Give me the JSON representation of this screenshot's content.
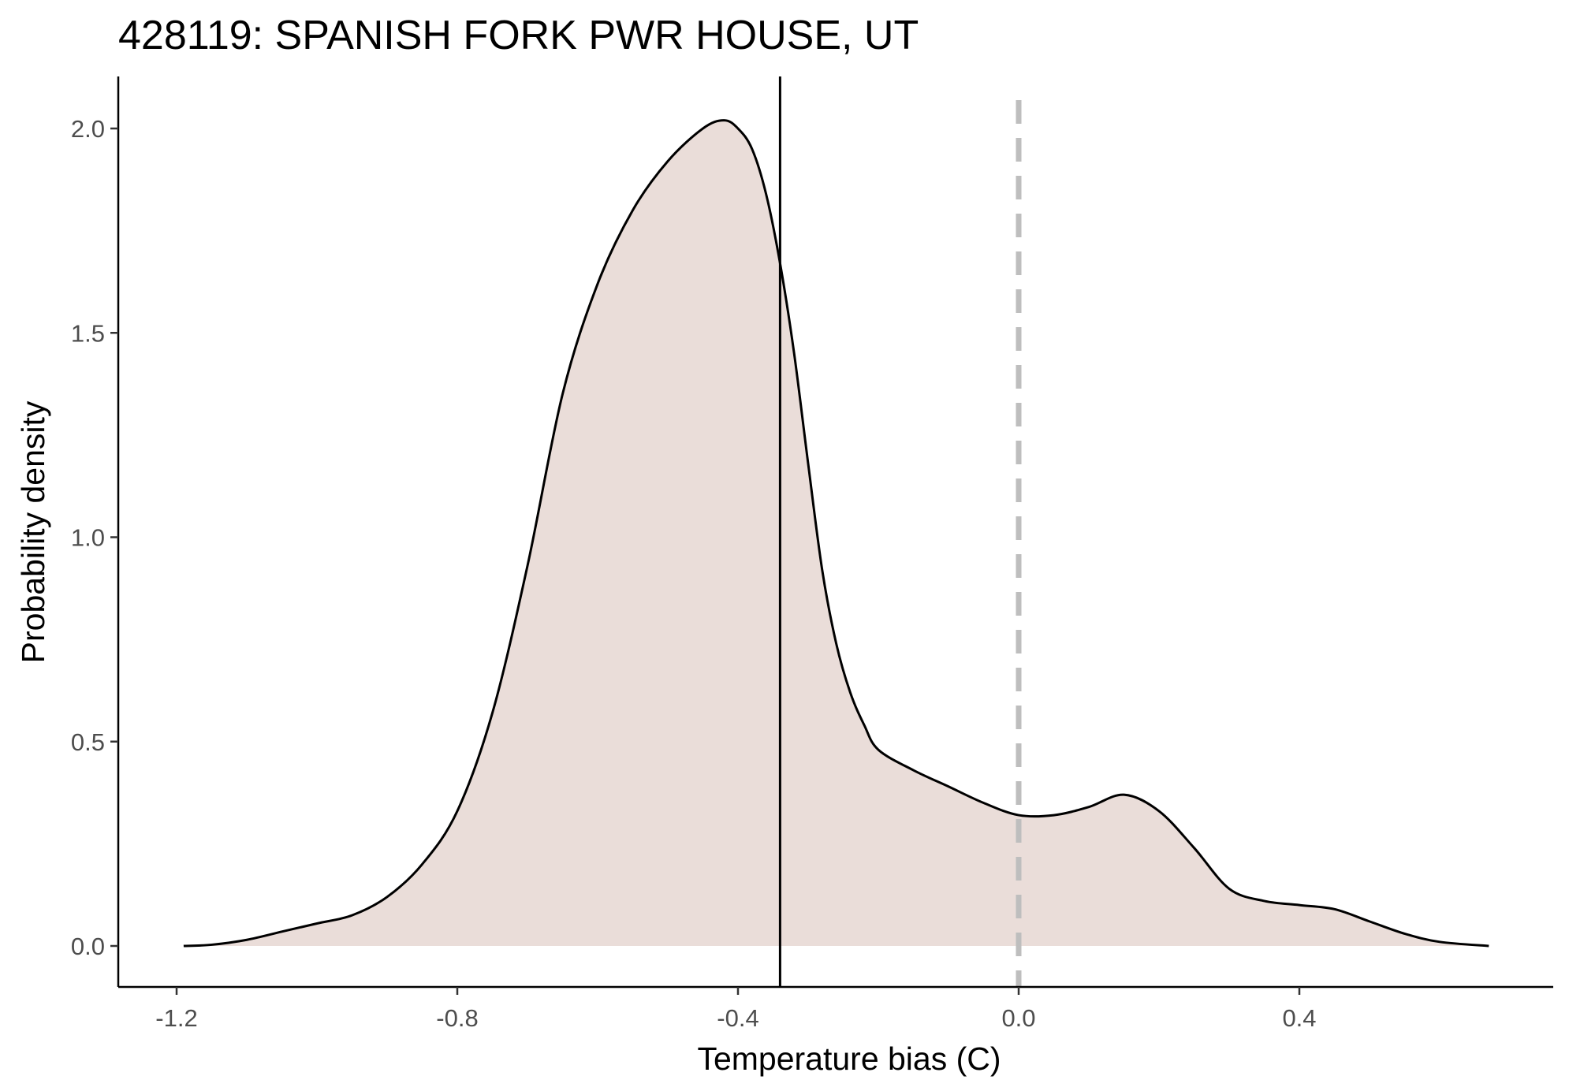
{
  "chart_data": {
    "type": "area",
    "title": "428119: SPANISH FORK PWR HOUSE, UT",
    "xlabel": "Temperature bias (C)",
    "ylabel": "Probability density",
    "xlim": [
      -1.29,
      0.76
    ],
    "ylim": [
      -0.1,
      2.13
    ],
    "x_ticks": [
      -1.2,
      -0.8,
      -0.4,
      0.0,
      0.4
    ],
    "x_tick_labels": [
      "-1.2",
      "-0.8",
      "-0.4",
      "0.0",
      "0.4"
    ],
    "y_ticks": [
      0.0,
      0.5,
      1.0,
      1.5,
      2.0
    ],
    "y_tick_labels": [
      "0.0",
      "0.5",
      "1.0",
      "1.5",
      "2.0"
    ],
    "grid": false,
    "legend": "none",
    "fill_color": "#eaddd9",
    "line_color": "#000000",
    "density": {
      "x": [
        -1.19,
        -1.15,
        -1.1,
        -1.05,
        -1.0,
        -0.95,
        -0.9,
        -0.85,
        -0.8,
        -0.75,
        -0.7,
        -0.65,
        -0.6,
        -0.55,
        -0.5,
        -0.45,
        -0.42,
        -0.4,
        -0.38,
        -0.36,
        -0.34,
        -0.32,
        -0.3,
        -0.28,
        -0.26,
        -0.24,
        -0.22,
        -0.2,
        -0.15,
        -0.1,
        -0.05,
        0.0,
        0.05,
        0.1,
        0.15,
        0.2,
        0.25,
        0.3,
        0.35,
        0.4,
        0.45,
        0.5,
        0.55,
        0.6,
        0.67
      ],
      "y": [
        0.0,
        0.003,
        0.015,
        0.035,
        0.055,
        0.075,
        0.12,
        0.2,
        0.33,
        0.57,
        0.93,
        1.35,
        1.62,
        1.8,
        1.92,
        2.0,
        2.02,
        2.0,
        1.95,
        1.84,
        1.67,
        1.45,
        1.18,
        0.92,
        0.74,
        0.62,
        0.54,
        0.48,
        0.43,
        0.39,
        0.35,
        0.32,
        0.32,
        0.34,
        0.37,
        0.33,
        0.24,
        0.14,
        0.11,
        0.1,
        0.09,
        0.06,
        0.03,
        0.01,
        0.0
      ]
    },
    "reference_lines": [
      {
        "x": -0.34,
        "style": "solid",
        "color": "#000000"
      },
      {
        "x": 0.0,
        "style": "dashed",
        "color": "#bebebe"
      }
    ]
  }
}
